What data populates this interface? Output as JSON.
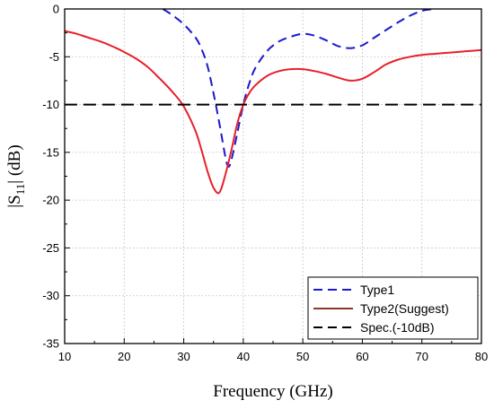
{
  "chart_data": {
    "type": "line",
    "title": "",
    "xlabel": "Frequency (GHz)",
    "ylabel": "|S11| (dB)",
    "ylabel_main": "|S",
    "ylabel_sub": "11",
    "ylabel_rest": "| (dB)",
    "xlim": [
      10,
      80
    ],
    "ylim": [
      -35,
      0
    ],
    "x_ticks": [
      10,
      20,
      30,
      40,
      50,
      60,
      70,
      80
    ],
    "y_ticks": [
      0,
      -5,
      -10,
      -15,
      -20,
      -25,
      -30,
      -35
    ],
    "grid": true,
    "legend_position": "bottom-right",
    "series": [
      {
        "name": "Type1",
        "color": "#1a1acc",
        "style": "dashed",
        "x": [
          26.5,
          28,
          30,
          32,
          33,
          34,
          35,
          36,
          37,
          37.5,
          38,
          39,
          40,
          41,
          42,
          44,
          46,
          48,
          50,
          52,
          54,
          56,
          58,
          60,
          62,
          64,
          66,
          68,
          70,
          72
        ],
        "y": [
          0,
          -0.6,
          -1.6,
          -3.0,
          -4.2,
          -6.0,
          -8.8,
          -12.0,
          -15.5,
          -16.5,
          -15.8,
          -13.0,
          -10.0,
          -7.8,
          -6.2,
          -4.4,
          -3.4,
          -2.9,
          -2.6,
          -2.8,
          -3.3,
          -3.9,
          -4.1,
          -3.8,
          -3.0,
          -2.2,
          -1.4,
          -0.7,
          -0.2,
          0
        ]
      },
      {
        "name": "Type2(Suggest)",
        "color": "#e8202a",
        "style": "solid",
        "x": [
          10,
          12,
          14,
          16,
          18,
          20,
          22,
          24,
          26,
          28,
          30,
          32,
          33,
          34,
          35,
          36,
          37,
          38,
          39,
          40,
          41,
          42,
          44,
          46,
          48,
          50,
          52,
          54,
          56,
          58,
          60,
          62,
          64,
          66,
          68,
          70,
          72,
          74,
          76,
          78,
          80
        ],
        "y": [
          -2.3,
          -2.6,
          -3.0,
          -3.4,
          -3.9,
          -4.5,
          -5.2,
          -6.1,
          -7.3,
          -8.6,
          -10.2,
          -12.8,
          -14.8,
          -17.0,
          -18.7,
          -19.2,
          -17.3,
          -14.8,
          -12.0,
          -10.0,
          -8.8,
          -8.0,
          -7.0,
          -6.5,
          -6.3,
          -6.3,
          -6.5,
          -6.8,
          -7.2,
          -7.5,
          -7.3,
          -6.6,
          -5.8,
          -5.3,
          -5.0,
          -4.8,
          -4.7,
          -4.6,
          -4.5,
          -4.4,
          -4.3
        ]
      },
      {
        "name": "Spec.(-10dB)",
        "color": "#000000",
        "style": "dashed",
        "x": [
          10,
          80
        ],
        "y": [
          -10,
          -10
        ]
      }
    ]
  }
}
